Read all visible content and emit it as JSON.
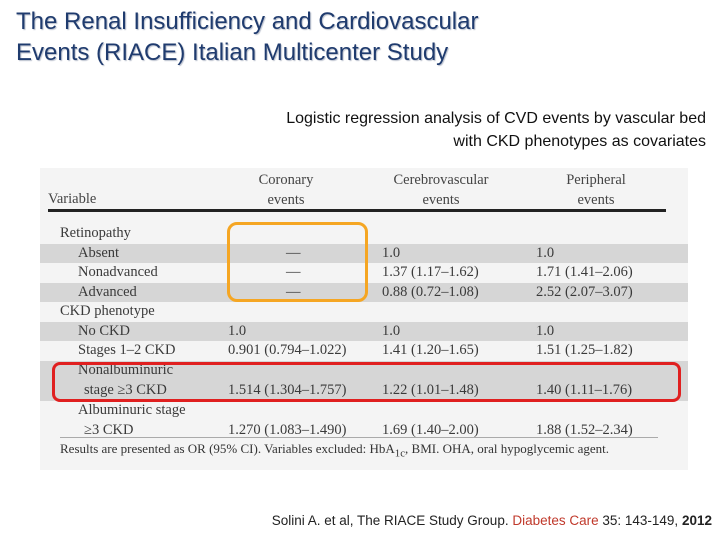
{
  "slide": {
    "title_line1": "The Renal Insufficiency and Cardiovascular",
    "title_line2": "Events (RIACE) Italian Multicenter Study",
    "subtitle_line1": "Logistic regression analysis of CVD events by vascular bed",
    "subtitle_line2": "with CKD phenotypes as covariates"
  },
  "table": {
    "headers": {
      "variable": "Variable",
      "coronary_l1": "Coronary",
      "coronary_l2": "events",
      "cerebro_l1": "Cerebrovascular",
      "cerebro_l2": "events",
      "peripheral_l1": "Peripheral",
      "peripheral_l2": "events"
    },
    "rows": [
      {
        "label": "Retinopathy",
        "coronary": "",
        "cerebro": "",
        "peripheral": ""
      },
      {
        "label": "Absent",
        "coronary": "—",
        "cerebro": "1.0",
        "peripheral": "1.0"
      },
      {
        "label": "Nonadvanced",
        "coronary": "—",
        "cerebro": "1.37 (1.17–1.62)",
        "peripheral": "1.71 (1.41–2.06)"
      },
      {
        "label": "Advanced",
        "coronary": "—",
        "cerebro": "0.88 (0.72–1.08)",
        "peripheral": "2.52 (2.07–3.07)"
      },
      {
        "label": "CKD phenotype",
        "coronary": "",
        "cerebro": "",
        "peripheral": ""
      },
      {
        "label": "No CKD",
        "coronary": "1.0",
        "cerebro": "1.0",
        "peripheral": "1.0"
      },
      {
        "label": "Stages 1–2 CKD",
        "coronary": "0.901 (0.794–1.022)",
        "cerebro": "1.41 (1.20–1.65)",
        "peripheral": "1.51 (1.25–1.82)"
      },
      {
        "label": "Nonalbuminuric",
        "label2": "stage ≥3 CKD",
        "coronary": "1.514 (1.304–1.757)",
        "cerebro": "1.22 (1.01–1.48)",
        "peripheral": "1.40 (1.11–1.76)"
      },
      {
        "label": "Albuminuric stage",
        "label2": "≥3 CKD",
        "coronary": "1.270 (1.083–1.490)",
        "cerebro": "1.69 (1.40–2.00)",
        "peripheral": "1.88 (1.52–2.34)"
      }
    ],
    "footnote_pre": "Results are presented as OR (95% CI). Variables excluded: HbA",
    "footnote_sub": "1c",
    "footnote_post": ", BMI. OHA, oral hypoglycemic agent."
  },
  "citation": {
    "authors": "Solini A. et al, The RIACE Study Group. ",
    "journal": "Diabetes Care",
    "volume": " 35: 143-149, ",
    "year": "2012"
  },
  "colors": {
    "title": "#1f3b6e",
    "highlight_orange": "#f5a623",
    "highlight_red": "#e02020",
    "journal": "#c0392b"
  }
}
